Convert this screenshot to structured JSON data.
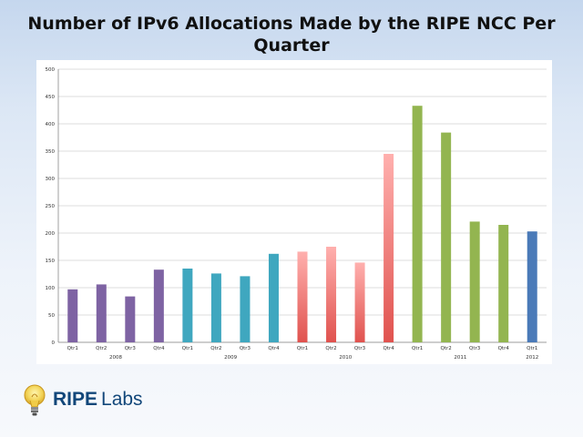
{
  "title": "Number of IPv6 Allocations Made by the RIPE NCC Per Quarter",
  "logo": {
    "brand": "RIPE",
    "suffix": "Labs"
  },
  "chart_data": {
    "type": "bar",
    "title": "Number of IPv6 Allocations Made by the RIPE NCC Per Quarter",
    "xlabel": "",
    "ylabel": "",
    "ylim": [
      0,
      500
    ],
    "yticks": [
      0,
      50,
      100,
      150,
      200,
      250,
      300,
      350,
      400,
      450,
      500
    ],
    "grid": true,
    "legend": "none",
    "categories": [
      "Qtr1",
      "Qtr2",
      "Qtr3",
      "Qtr4",
      "Qtr1",
      "Qtr2",
      "Qtr3",
      "Qtr4",
      "Qtr1",
      "Qtr2",
      "Qtr3",
      "Qtr4",
      "Qtr1",
      "Qtr2",
      "Qtr3",
      "Qtr4",
      "Qtr1"
    ],
    "groups": [
      {
        "label": "2008",
        "count": 4,
        "color": "#7e63a3"
      },
      {
        "label": "2009",
        "count": 4,
        "color": "#3fa7bf"
      },
      {
        "label": "2010",
        "count": 4,
        "color": "#e0524e"
      },
      {
        "label": "2011",
        "count": 4,
        "color": "#93b550"
      },
      {
        "label": "2012",
        "count": 1,
        "color": "#4a7ab8"
      }
    ],
    "values": [
      97,
      106,
      84,
      133,
      135,
      126,
      121,
      162,
      166,
      175,
      146,
      345,
      433,
      384,
      221,
      215,
      203
    ]
  }
}
